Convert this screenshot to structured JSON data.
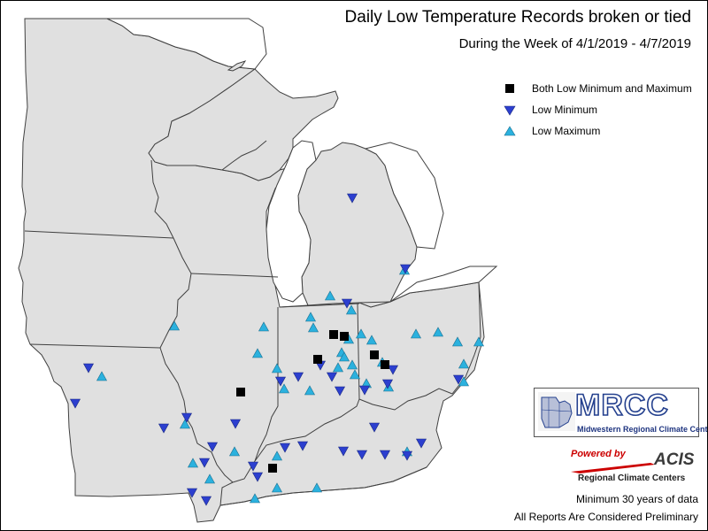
{
  "title": "Daily Low Temperature Records broken or tied",
  "subtitle": "During the Week of 4/1/2019 - 4/7/2019",
  "legend": {
    "both": "Both Low Minimum and Maximum",
    "low_min": "Low Minimum",
    "low_max": "Low Maximum"
  },
  "colors": {
    "land": "#e0e0e0",
    "water": "#ffffff",
    "border": "#404040",
    "both": "#000000",
    "low_min": "#2c3fcf",
    "low_max": "#2bb1de",
    "mrcc_blue": "#24408e",
    "acis_red": "#cc0000"
  },
  "logos": {
    "mrcc": {
      "name": "MRCC",
      "subtitle": "Midwestern Regional Climate Center"
    },
    "acis": {
      "powered": "Powered by",
      "name": "ACIS",
      "subtitle": "Regional Climate Centers"
    }
  },
  "footnotes": {
    "min_years": "Minimum 30 years of data",
    "preliminary": "All Reports Are Considered Preliminary"
  },
  "stations": {
    "both": [
      [
        271,
        442
      ],
      [
        307,
        528
      ],
      [
        358,
        405
      ],
      [
        376,
        377
      ],
      [
        388,
        379
      ],
      [
        422,
        400
      ],
      [
        434,
        411
      ]
    ],
    "low_min": [
      [
        397,
        223
      ],
      [
        457,
        303
      ],
      [
        391,
        342
      ],
      [
        316,
        430
      ],
      [
        336,
        425
      ],
      [
        361,
        412
      ],
      [
        374,
        425
      ],
      [
        383,
        441
      ],
      [
        411,
        440
      ],
      [
        437,
        433
      ],
      [
        443,
        417
      ],
      [
        230,
        522
      ],
      [
        216,
        556
      ],
      [
        232,
        565
      ],
      [
        184,
        483
      ],
      [
        265,
        478
      ],
      [
        239,
        504
      ],
      [
        285,
        526
      ],
      [
        290,
        538
      ],
      [
        321,
        505
      ],
      [
        341,
        503
      ],
      [
        408,
        513
      ],
      [
        387,
        509
      ],
      [
        434,
        513
      ],
      [
        459,
        514
      ],
      [
        475,
        500
      ],
      [
        422,
        482
      ],
      [
        99,
        415
      ],
      [
        84,
        455
      ],
      [
        210,
        471
      ],
      [
        517,
        428
      ]
    ],
    "low_max": [
      [
        196,
        367
      ],
      [
        208,
        478
      ],
      [
        217,
        522
      ],
      [
        236,
        540
      ],
      [
        264,
        509
      ],
      [
        287,
        562
      ],
      [
        297,
        368
      ],
      [
        290,
        398
      ],
      [
        312,
        415
      ],
      [
        320,
        438
      ],
      [
        350,
        357
      ],
      [
        353,
        369
      ],
      [
        349,
        440
      ],
      [
        372,
        333
      ],
      [
        393,
        382
      ],
      [
        407,
        376
      ],
      [
        385,
        397
      ],
      [
        388,
        402
      ],
      [
        381,
        414
      ],
      [
        397,
        411
      ],
      [
        400,
        422
      ],
      [
        419,
        383
      ],
      [
        431,
        408
      ],
      [
        438,
        436
      ],
      [
        469,
        376
      ],
      [
        494,
        374
      ],
      [
        516,
        385
      ],
      [
        540,
        385
      ],
      [
        523,
        410
      ],
      [
        523,
        430
      ],
      [
        456,
        304
      ],
      [
        114,
        424
      ],
      [
        357,
        550
      ],
      [
        312,
        514
      ],
      [
        312,
        550
      ],
      [
        459,
        509
      ],
      [
        413,
        432
      ],
      [
        396,
        349
      ]
    ]
  }
}
